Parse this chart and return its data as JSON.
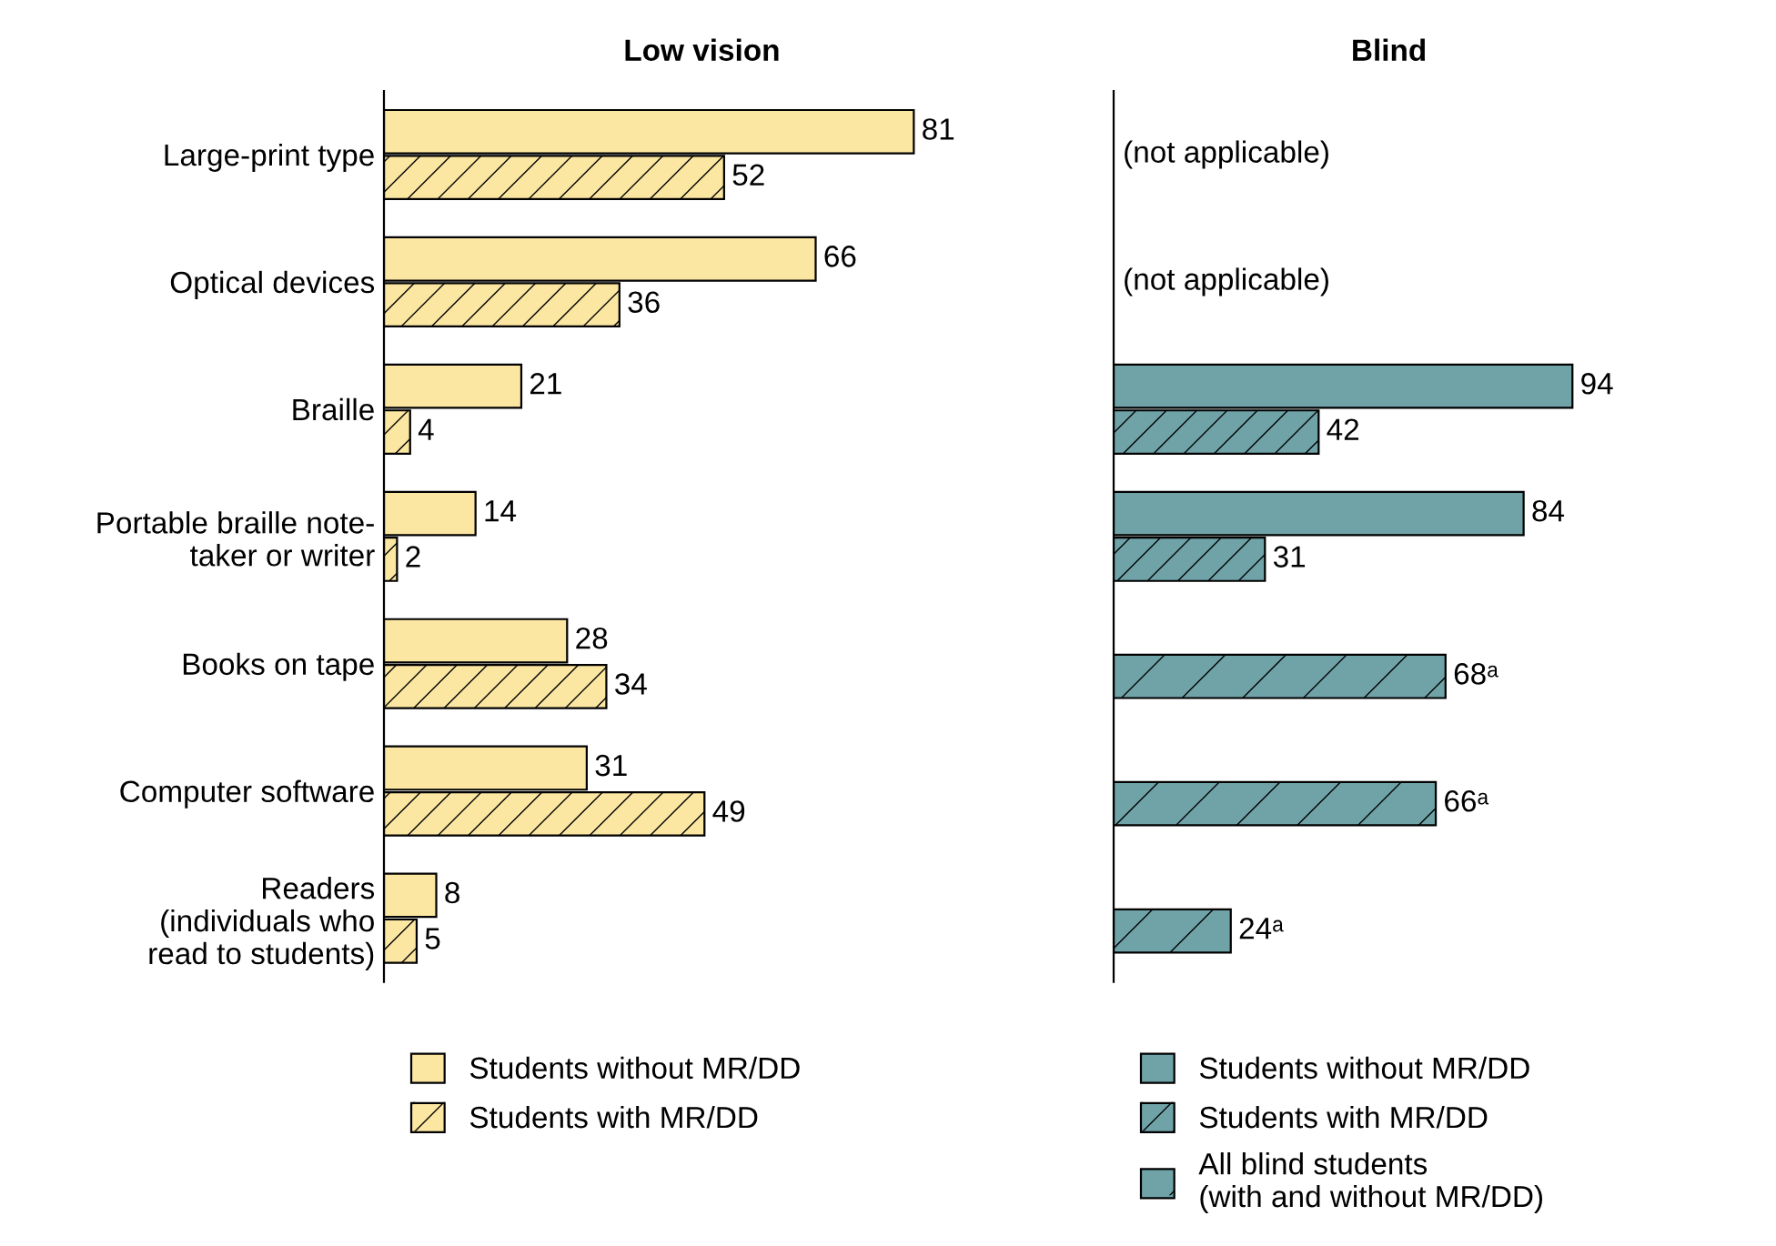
{
  "chart_data": [
    {
      "type": "bar",
      "orientation": "horizontal",
      "title": "Low vision",
      "categories": [
        "Large-print type",
        "Optical devices",
        "Braille",
        "Portable braille note-\ntaker or writer",
        "Books on tape",
        "Computer software",
        "Readers\n(individuals who\nread to students)"
      ],
      "series": [
        {
          "name": "Students without MR/DD",
          "color": "#fbe6a2",
          "values": [
            81,
            66,
            21,
            14,
            28,
            31,
            8
          ]
        },
        {
          "name": "Students with MR/DD",
          "color": "#fbe6a2",
          "values": [
            52,
            36,
            4,
            2,
            34,
            49,
            5
          ]
        }
      ],
      "data_labels": true,
      "legend": "bottom",
      "tick_labels": "y",
      "grid": false
    },
    {
      "type": "bar",
      "orientation": "horizontal",
      "title": "Blind",
      "categories": [
        null,
        null,
        null,
        null,
        null,
        null,
        null
      ],
      "series": [
        {
          "name": "Students without MR/DD",
          "color": "#6fa3a8",
          "values": [
            null,
            null,
            94,
            84,
            null,
            null,
            null
          ]
        },
        {
          "name": "Students with MR/DD",
          "color": "#6fa3a8",
          "values": [
            null,
            null,
            42,
            31,
            null,
            null,
            null
          ]
        },
        {
          "name": "All blind students\n(with and without MR/DD)",
          "color": "#6fa3a8",
          "values": [
            null,
            null,
            null,
            null,
            68,
            66,
            24
          ],
          "value_labels": [
            null,
            null,
            null,
            null,
            "68ᵃ",
            "66ᵃ",
            "24ᵃ"
          ]
        }
      ],
      "annotations": [
        "(not applicable)",
        "(not applicable)"
      ],
      "data_labels": true,
      "legend": "bottom",
      "tick_labels": false,
      "grid": false
    }
  ]
}
